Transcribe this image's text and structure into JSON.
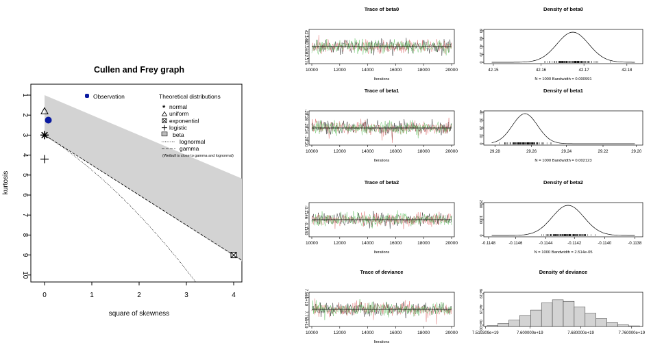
{
  "chart_data": [
    {
      "type": "scatter",
      "title": "Cullen and Frey graph",
      "xlabel": "square of skewness",
      "ylabel": "kurtosis",
      "xlim": [
        0,
        4
      ],
      "ylim": [
        1,
        10
      ],
      "y_reversed": true,
      "x_ticks": [
        "0",
        "1",
        "2",
        "3",
        "4"
      ],
      "y_ticks": [
        "1",
        "2",
        "3",
        "4",
        "5",
        "6",
        "7",
        "8",
        "9",
        "10"
      ],
      "legend_observation": "Observation",
      "legend_title": "Theoretical distributions",
      "legend_items": [
        "normal",
        "uniform",
        "exponential",
        "logistic",
        "beta",
        "lognormal",
        "gamma"
      ],
      "legend_note": "(Weibull is close to gamma and lognormal)",
      "observation": {
        "x": 0.08,
        "y": 2.25,
        "color": "#0a1aa0"
      },
      "normal": {
        "x": 0,
        "y": 3
      },
      "uniform": {
        "x": 0,
        "y": 1.8
      },
      "exponential": {
        "x": 4,
        "y": 9
      },
      "logistic": {
        "x": 0,
        "y": 4.2
      },
      "beta_region_color": "#d3d3d3"
    },
    {
      "type": "line",
      "title": "Trace of beta0",
      "xlabel": "Iterations",
      "x_ticks": [
        "10000",
        "12000",
        "14000",
        "16000",
        "18000",
        "20000"
      ],
      "y_ticks": [
        "42.145",
        "42.160",
        "42.175"
      ],
      "center": 42.1605,
      "sd": 0.003
    },
    {
      "type": "area",
      "title": "Density of beta0",
      "xlabel": "N = 1000   Bandwidth = 0.000991",
      "x_ticks": [
        "42.15",
        "42.16",
        "42.17",
        "42.18"
      ],
      "y_ticks": [
        "0",
        "20",
        "40",
        "60",
        "80"
      ],
      "mean": 42.1642,
      "sd": 0.0045,
      "peak": 82
    },
    {
      "type": "line",
      "title": "Trace of beta1",
      "xlabel": "Iterations",
      "x_ticks": [
        "10000",
        "12000",
        "14000",
        "16000",
        "18000",
        "20000"
      ],
      "y_ticks": [
        "-29.28",
        "-29.24",
        "-29.20"
      ],
      "center": -29.255,
      "sd": 0.006
    },
    {
      "type": "area",
      "title": "Density of beta1",
      "xlabel": "N = 1000   Bandwidth = 0.002123",
      "x_ticks": [
        "29.28",
        "29.26",
        "29.24",
        "29.22",
        "29.20"
      ],
      "y_ticks": [
        "0",
        "10",
        "20",
        "30",
        "40"
      ],
      "mean": 29.257,
      "sd": 0.01,
      "peak": 39
    },
    {
      "type": "line",
      "title": "Trace of beta2",
      "xlabel": "Iterations",
      "x_ticks": [
        "10000",
        "12000",
        "14000",
        "16000",
        "18000",
        "20000"
      ],
      "y_ticks": [
        "-0.1146",
        "-0.1140"
      ],
      "center": -0.11425,
      "sd": 0.00012
    },
    {
      "type": "area",
      "title": "Density of beta2",
      "xlabel": "N = 1000   Bandwidth = 2.514e-05",
      "x_ticks": [
        "-0.1148",
        "-0.1146",
        "-0.1144",
        "-0.1142",
        "-0.1140",
        "-0.1138"
      ],
      "y_ticks": [
        "0",
        "1000",
        "2500"
      ],
      "mean": -0.11425,
      "sd": 0.00012,
      "peak": 2950
    },
    {
      "type": "line",
      "title": "Trace of deviance",
      "xlabel": "Iterations",
      "x_ticks": [
        "10000",
        "12000",
        "14000",
        "16000",
        "18000",
        "20000"
      ],
      "y_ticks": [
        "7.56e+19",
        "7.75e+19"
      ],
      "center": 7.66e+19,
      "sd": 3e+17
    },
    {
      "type": "bar",
      "title": "Density of deviance",
      "x_ticks": [
        "7.519309e+19",
        "7.600000e+19",
        "7.680000e+19",
        "7.760000e+19"
      ],
      "y_ticks": [
        "0e+00",
        "4e-19",
        "8e-19"
      ],
      "values": [
        0.03,
        0.1,
        0.2,
        0.35,
        0.52,
        0.75,
        0.85,
        0.8,
        0.62,
        0.42,
        0.25,
        0.12,
        0.05,
        0.02
      ]
    }
  ]
}
